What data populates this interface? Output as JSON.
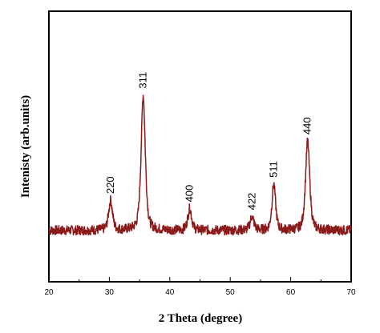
{
  "chart_data": {
    "type": "line",
    "title": "",
    "xlabel": "2 Theta (degree)",
    "ylabel": "Intenisty (arb.units)",
    "xlim": [
      20,
      70
    ],
    "ylim": [
      0,
      100
    ],
    "y_ticks_labeled": false,
    "x_ticks": [
      "20",
      "30",
      "40",
      "50",
      "60",
      "70"
    ],
    "grid": false,
    "legend": "none",
    "line_color": "#8b1a1a",
    "background": 19,
    "noise": 1.8,
    "peaks": [
      {
        "label": "220",
        "x": 30.2,
        "height": 11,
        "width": 0.35
      },
      {
        "label": "311",
        "x": 35.6,
        "height": 50,
        "width": 0.38
      },
      {
        "label": "400",
        "x": 43.3,
        "height": 8,
        "width": 0.35
      },
      {
        "label": "422",
        "x": 53.6,
        "height": 5,
        "width": 0.35
      },
      {
        "label": "511",
        "x": 57.2,
        "height": 17,
        "width": 0.33
      },
      {
        "label": "440",
        "x": 62.8,
        "height": 33,
        "width": 0.38
      }
    ]
  }
}
